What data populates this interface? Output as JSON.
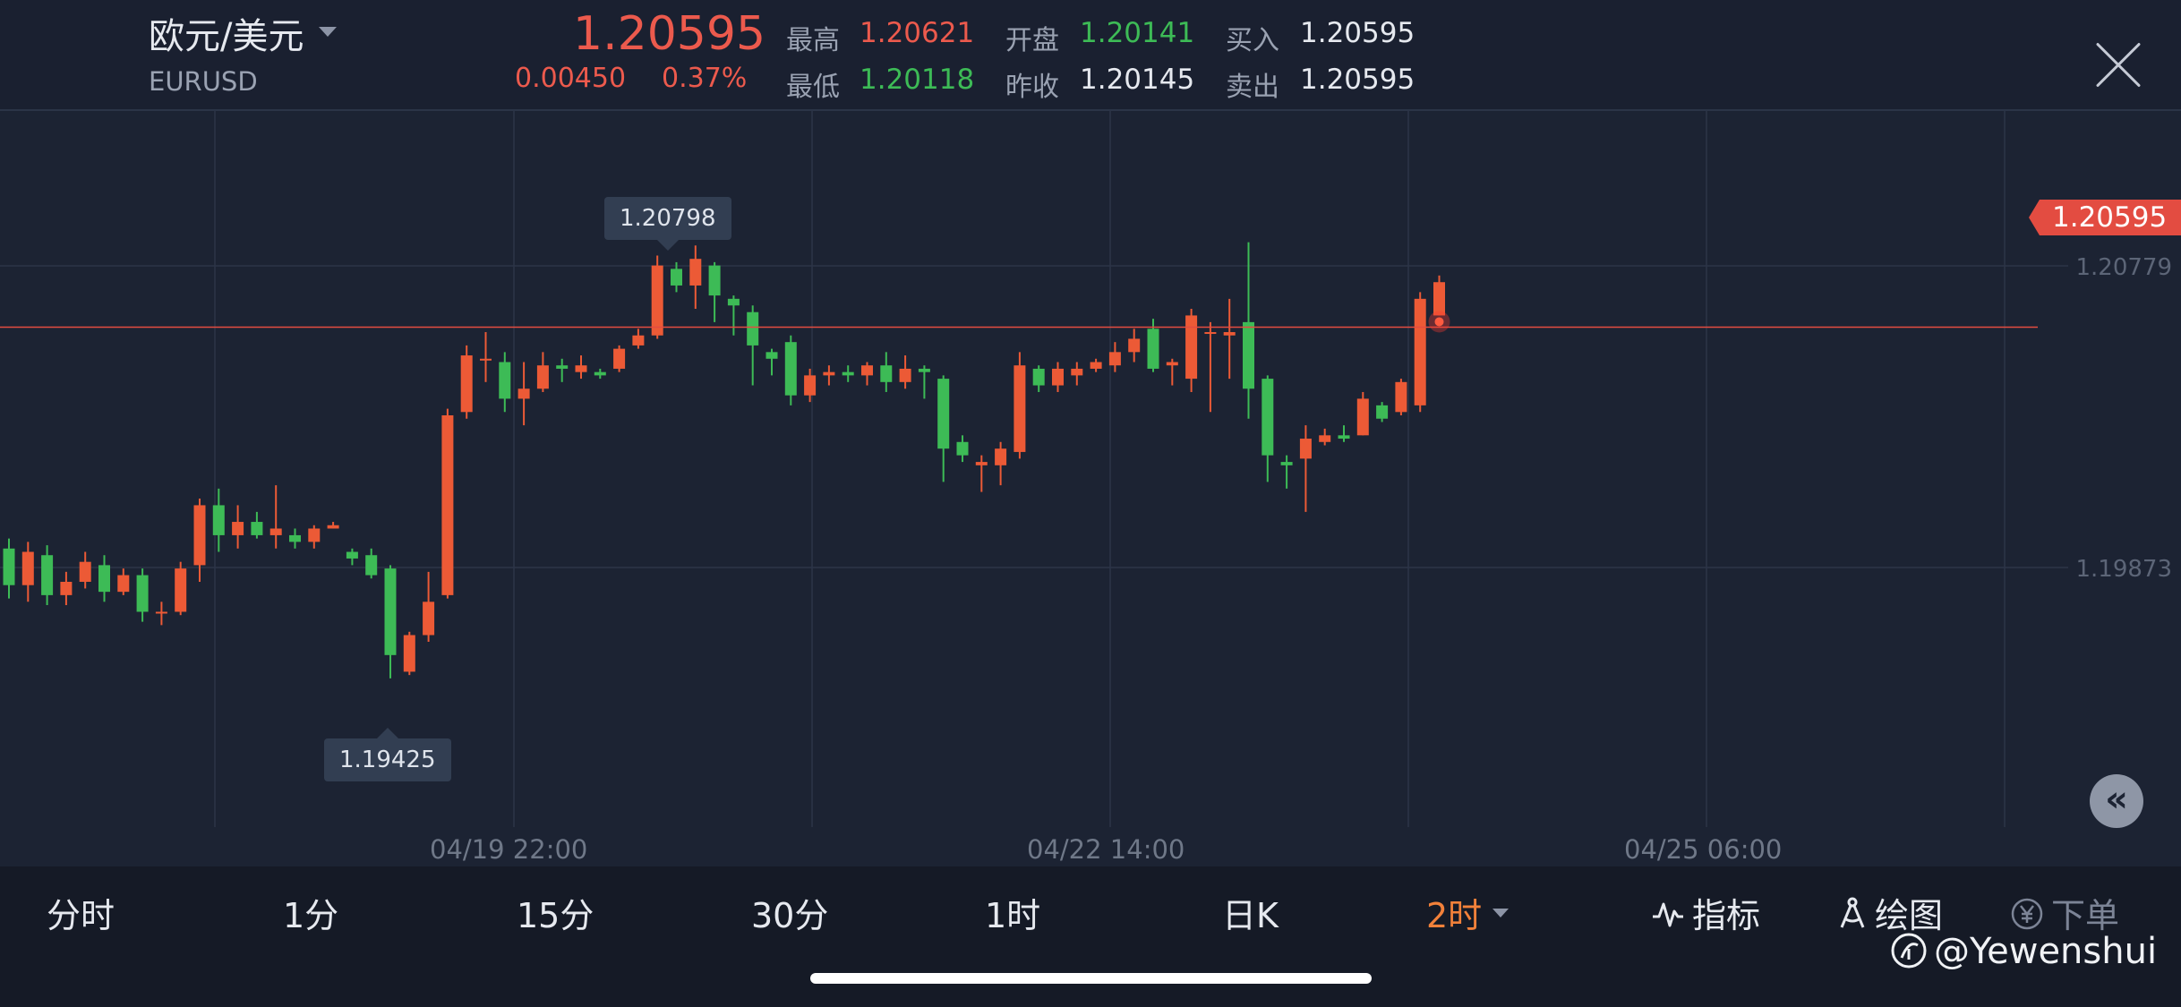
{
  "header": {
    "symbol_name": "欧元/美元",
    "symbol_code": "EURUSD",
    "last_price": "1.20595",
    "change_abs": "0.00450",
    "change_pct": "0.37%",
    "quote": [
      {
        "label": "最高",
        "value": "1.20621",
        "color": "red"
      },
      {
        "label": "开盘",
        "value": "1.20141",
        "color": "green"
      },
      {
        "label": "买入",
        "value": "1.20595",
        "color": "white"
      },
      {
        "label": "最低",
        "value": "1.20118",
        "color": "green"
      },
      {
        "label": "昨收",
        "value": "1.20145",
        "color": "white"
      },
      {
        "label": "卖出",
        "value": "1.20595",
        "color": "white"
      }
    ]
  },
  "chart": {
    "price_axis": [
      "1.20779",
      "1.19873"
    ],
    "current_price_label": "1.20595",
    "high_callout": "1.20798",
    "low_callout": "1.19425",
    "time_axis": [
      "04/19 22:00",
      "04/22 14:00",
      "04/25 06:00"
    ],
    "colors": {
      "up": "#ec5a36",
      "down": "#3dbb56",
      "price_line": "#e34c41"
    }
  },
  "chart_data": {
    "type": "candlestick",
    "interval": "2时",
    "price_ticks": [
      1.20779,
      1.19873
    ],
    "last_price": 1.20595,
    "high_marker": 1.20798,
    "low_marker": 1.19425,
    "x_tick_labels": [
      "04/19 22:00",
      "04/22 14:00",
      "04/25 06:00"
    ],
    "candles": [
      [
        1.1993,
        1.1982,
        1.1996,
        1.1978
      ],
      [
        1.1982,
        1.1992,
        1.1995,
        1.1977
      ],
      [
        1.1991,
        1.1979,
        1.1994,
        1.1976
      ],
      [
        1.1979,
        1.1983,
        1.1986,
        1.1976
      ],
      [
        1.1983,
        1.1989,
        1.1992,
        1.1981
      ],
      [
        1.1988,
        1.198,
        1.1991,
        1.1977
      ],
      [
        1.198,
        1.1985,
        1.1987,
        1.1979
      ],
      [
        1.1985,
        1.1974,
        1.1987,
        1.1971
      ],
      [
        1.1974,
        1.1974,
        1.1977,
        1.197
      ],
      [
        1.1974,
        1.1987,
        1.1989,
        1.1973
      ],
      [
        1.1988,
        1.2006,
        1.2008,
        1.1983
      ],
      [
        1.2006,
        1.1997,
        1.2011,
        1.1992
      ],
      [
        1.1997,
        1.2001,
        1.2006,
        1.1993
      ],
      [
        1.2001,
        1.1997,
        1.2004,
        1.1996
      ],
      [
        1.1997,
        1.1999,
        1.2012,
        1.1993
      ],
      [
        1.1997,
        1.1995,
        1.1999,
        1.1993
      ],
      [
        1.1995,
        1.1999,
        1.2,
        1.1993
      ],
      [
        1.1999,
        1.2,
        1.2001,
        1.1999
      ],
      [
        1.1992,
        1.199,
        1.1993,
        1.1988
      ],
      [
        1.1991,
        1.1985,
        1.1993,
        1.1984
      ],
      [
        1.1987,
        1.1961,
        1.1988,
        1.1954
      ],
      [
        1.1956,
        1.1967,
        1.1968,
        1.1955
      ],
      [
        1.1967,
        1.1977,
        1.1986,
        1.1965
      ],
      [
        1.1979,
        1.2033,
        1.2035,
        1.1978
      ],
      [
        1.2034,
        1.2051,
        1.2054,
        1.2032
      ],
      [
        1.205,
        1.205,
        1.2058,
        1.2043
      ],
      [
        1.2049,
        1.2038,
        1.2052,
        1.2034
      ],
      [
        1.2038,
        1.2041,
        1.2049,
        1.203
      ],
      [
        1.2041,
        1.2048,
        1.2052,
        1.204
      ],
      [
        1.2048,
        1.2047,
        1.205,
        1.2043
      ],
      [
        1.2046,
        1.2048,
        1.2051,
        1.2044
      ],
      [
        1.2046,
        1.2045,
        1.2047,
        1.2044
      ],
      [
        1.2047,
        1.2053,
        1.2054,
        1.2046
      ],
      [
        1.2054,
        1.2057,
        1.2059,
        1.2053
      ],
      [
        1.2057,
        1.2078,
        1.2081,
        1.2056
      ],
      [
        1.2077,
        1.2072,
        1.2079,
        1.207
      ],
      [
        1.2072,
        1.208,
        1.2084,
        1.2065
      ],
      [
        1.2078,
        1.2069,
        1.2079,
        1.2061
      ],
      [
        1.2068,
        1.2066,
        1.2069,
        1.2057
      ],
      [
        1.2064,
        1.2054,
        1.2066,
        1.2042
      ],
      [
        1.2052,
        1.205,
        1.2053,
        1.2045
      ],
      [
        1.2055,
        1.2039,
        1.2057,
        1.2036
      ],
      [
        1.2039,
        1.2045,
        1.2047,
        1.2037
      ],
      [
        1.2045,
        1.2046,
        1.2048,
        1.2042
      ],
      [
        1.2046,
        1.2045,
        1.2048,
        1.2043
      ],
      [
        1.2045,
        1.2048,
        1.2049,
        1.2042
      ],
      [
        1.2048,
        1.2043,
        1.2052,
        1.204
      ],
      [
        1.2043,
        1.2047,
        1.2051,
        1.2041
      ],
      [
        1.2047,
        1.2046,
        1.2048,
        1.2038
      ],
      [
        1.2044,
        1.2023,
        1.2045,
        1.2013
      ],
      [
        1.2025,
        1.2021,
        1.2027,
        1.2019
      ],
      [
        1.2018,
        1.2019,
        1.2021,
        1.201
      ],
      [
        1.2018,
        1.2023,
        1.2025,
        1.2012
      ],
      [
        1.2022,
        1.2048,
        1.2052,
        1.202
      ],
      [
        1.2047,
        1.2042,
        1.2048,
        1.204
      ],
      [
        1.2042,
        1.2047,
        1.2049,
        1.204
      ],
      [
        1.2045,
        1.2047,
        1.2049,
        1.2042
      ],
      [
        1.2047,
        1.2049,
        1.205,
        1.2046
      ],
      [
        1.2048,
        1.2052,
        1.2055,
        1.2046
      ],
      [
        1.2052,
        1.2056,
        1.2059,
        1.2049
      ],
      [
        1.2059,
        1.2047,
        1.2062,
        1.2046
      ],
      [
        1.2048,
        1.2049,
        1.205,
        1.2042
      ],
      [
        1.2044,
        1.2063,
        1.2065,
        1.204
      ],
      [
        1.2058,
        1.2058,
        1.2061,
        1.2034
      ],
      [
        1.2057,
        1.2058,
        1.2068,
        1.2044
      ],
      [
        1.2061,
        1.2041,
        1.2085,
        1.2032
      ],
      [
        1.2044,
        1.2021,
        1.2045,
        1.2013
      ],
      [
        1.2019,
        1.2018,
        1.2021,
        1.2011
      ],
      [
        1.202,
        1.2026,
        1.203,
        1.2004
      ],
      [
        1.2025,
        1.2027,
        1.2029,
        1.2024
      ],
      [
        1.2027,
        1.2026,
        1.203,
        1.2025
      ],
      [
        1.2027,
        1.2038,
        1.204,
        1.2027
      ],
      [
        1.2036,
        1.2032,
        1.2037,
        1.2031
      ],
      [
        1.2034,
        1.2043,
        1.2044,
        1.2033
      ],
      [
        1.2036,
        1.2068,
        1.207,
        1.2034
      ],
      [
        1.2063,
        1.2073,
        1.2075,
        1.2063
      ]
    ]
  },
  "tabs": {
    "intervals": [
      "分时",
      "1分",
      "15分",
      "30分",
      "1时",
      "日K",
      "2时"
    ],
    "active": "2时",
    "indicator_label": "指标",
    "draw_label": "绘图",
    "order_label": "下单"
  },
  "watermark": "@Yewenshui"
}
